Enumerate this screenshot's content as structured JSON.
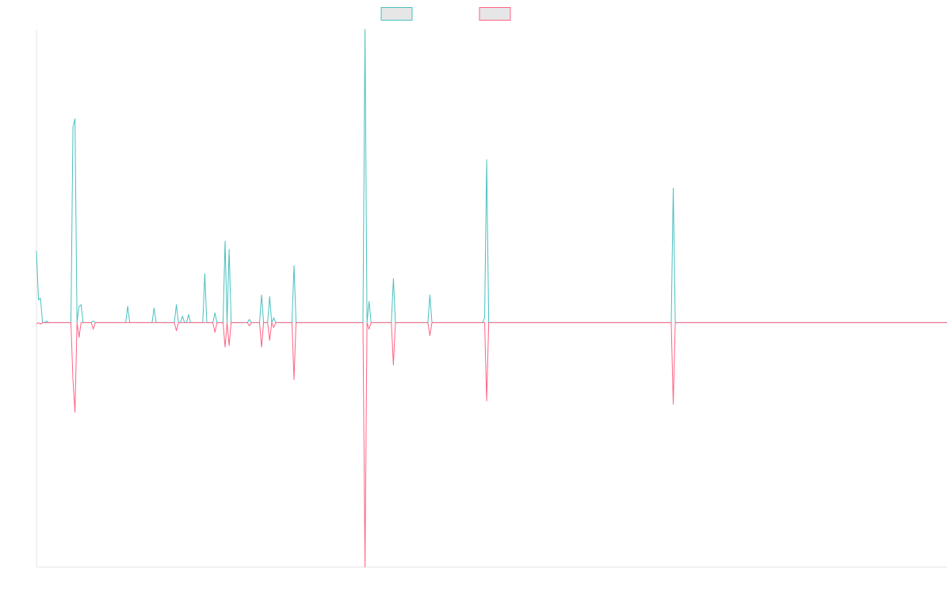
{
  "chart_data": {
    "type": "line",
    "title": "",
    "xlabel": "",
    "ylabel": "",
    "grid": false,
    "legend": "top-center",
    "x": [
      0,
      1,
      2,
      3,
      4,
      5,
      6,
      7,
      8,
      9,
      10,
      11,
      12,
      13,
      14,
      15,
      16,
      17,
      18,
      19,
      20,
      21,
      22,
      23,
      24,
      25,
      26,
      27,
      28,
      29,
      30,
      31,
      32,
      33,
      34,
      35,
      36,
      37,
      38,
      39,
      40,
      41,
      42,
      43,
      44,
      45,
      46,
      47,
      48,
      49,
      50,
      51,
      52,
      53,
      54,
      55,
      56,
      57,
      58,
      59,
      60,
      61,
      62,
      63,
      64,
      65,
      66,
      67,
      68,
      69,
      70,
      71,
      72,
      73,
      74,
      75,
      76,
      77,
      78,
      79,
      80,
      81,
      82,
      83,
      84,
      85,
      86,
      87,
      88,
      89,
      90,
      91,
      92,
      93,
      94,
      95,
      96,
      97,
      98,
      99,
      100,
      101,
      102,
      103,
      104,
      105,
      106,
      107,
      108,
      109,
      110,
      111,
      112,
      113,
      114,
      115,
      116,
      117,
      118,
      119,
      120,
      121,
      122,
      123,
      124,
      125,
      126,
      127,
      128,
      129,
      130,
      131,
      132,
      133,
      134,
      135,
      136,
      137,
      138,
      139,
      140,
      141,
      142,
      143,
      144,
      145,
      146,
      147,
      148,
      149,
      150,
      151,
      152,
      153,
      154,
      155,
      156,
      157,
      158,
      159,
      160,
      161,
      162,
      163,
      164,
      165,
      166,
      167,
      168,
      169,
      170,
      171,
      172,
      173,
      174,
      175,
      176,
      177,
      178,
      179,
      180,
      181,
      182,
      183,
      184,
      185,
      186,
      187,
      188,
      189,
      190,
      191,
      192,
      193,
      194,
      195,
      196,
      197,
      198,
      199,
      200,
      201,
      202,
      203,
      204,
      205,
      206,
      207,
      208,
      209,
      210,
      211,
      212,
      213,
      214,
      215,
      216,
      217,
      218,
      219,
      220,
      221,
      222,
      223,
      224,
      225,
      226,
      227,
      228,
      229,
      230,
      231,
      232,
      233,
      234,
      235,
      236,
      237,
      238,
      239,
      240,
      241,
      242,
      243,
      244,
      245,
      246,
      247,
      248,
      249,
      250,
      251,
      252,
      253,
      254,
      255,
      256,
      257,
      258,
      259,
      260,
      261,
      262,
      263,
      264,
      265,
      266,
      267,
      268,
      269,
      270,
      271,
      272,
      273,
      274,
      275,
      276,
      277,
      278,
      279,
      280,
      281,
      282,
      283,
      284,
      285,
      286,
      287,
      288,
      289,
      290,
      291,
      292,
      293,
      294,
      295,
      296,
      297,
      298,
      299,
      300,
      301,
      302,
      303,
      304,
      305,
      306,
      307,
      308,
      309,
      310,
      311,
      312,
      313,
      314,
      315,
      316,
      317,
      318,
      319,
      320,
      321,
      322,
      323,
      324,
      325,
      326,
      327,
      328,
      329,
      330,
      331,
      332,
      333,
      334,
      335,
      336,
      337,
      338,
      339,
      340,
      341,
      342,
      343,
      344,
      345,
      346,
      347,
      348,
      349,
      350,
      351,
      352,
      353,
      354,
      355,
      356,
      357,
      358,
      359,
      360,
      361,
      362,
      363,
      364,
      365,
      366,
      367,
      368,
      369,
      370,
      371,
      372,
      373,
      374,
      375,
      376,
      377,
      378,
      379,
      380,
      381,
      382,
      383,
      384,
      385,
      386,
      387,
      388,
      389,
      390,
      391,
      392,
      393,
      394,
      395,
      396,
      397,
      398,
      399,
      400,
      401,
      402,
      403,
      404,
      405,
      406,
      407,
      408,
      409,
      410,
      411,
      412,
      413,
      414,
      415,
      416,
      417,
      418,
      419,
      420,
      421,
      422,
      423,
      424,
      425,
      426,
      427,
      428,
      429,
      430,
      431,
      432,
      433,
      434,
      435,
      436,
      437,
      438,
      439,
      440,
      441,
      442,
      443,
      444,
      445,
      446,
      447,
      448,
      449
    ],
    "xlim": [
      0,
      449
    ],
    "ylim": [
      -0.3,
      0.36
    ],
    "series": [
      {
        "name": "",
        "color": "#4bc0c0",
        "spikes": [
          [
            0,
            0.088
          ],
          [
            1,
            0.028
          ],
          [
            2,
            0.03
          ],
          [
            5,
            0.002
          ],
          [
            18,
            0.24
          ],
          [
            19,
            0.25
          ],
          [
            21,
            0.02
          ],
          [
            22,
            0.022
          ],
          [
            28,
            0.002
          ],
          [
            45,
            0.02
          ],
          [
            58,
            0.018
          ],
          [
            69,
            0.022
          ],
          [
            72,
            0.008
          ],
          [
            75,
            0.01
          ],
          [
            83,
            0.06
          ],
          [
            88,
            0.012
          ],
          [
            93,
            0.1
          ],
          [
            95,
            0.09
          ],
          [
            105,
            0.004
          ],
          [
            111,
            0.034
          ],
          [
            115,
            0.032
          ],
          [
            117,
            0.006
          ],
          [
            127,
            0.07
          ],
          [
            162,
            0.36
          ],
          [
            164,
            0.026
          ],
          [
            176,
            0.054
          ],
          [
            194,
            0.034
          ],
          [
            221,
            0.006
          ],
          [
            222,
            0.2
          ],
          [
            314,
            0.165
          ]
        ]
      },
      {
        "name": "",
        "color": "#ff6384",
        "spikes": [
          [
            0,
            -0.002
          ],
          [
            2,
            -0.002
          ],
          [
            18,
            -0.07
          ],
          [
            19,
            -0.11
          ],
          [
            21,
            -0.018
          ],
          [
            28,
            -0.008
          ],
          [
            69,
            -0.01
          ],
          [
            88,
            -0.012
          ],
          [
            93,
            -0.03
          ],
          [
            95,
            -0.028
          ],
          [
            105,
            -0.004
          ],
          [
            111,
            -0.03
          ],
          [
            115,
            -0.022
          ],
          [
            117,
            -0.006
          ],
          [
            127,
            -0.07
          ],
          [
            162,
            -0.3
          ],
          [
            164,
            -0.008
          ],
          [
            176,
            -0.052
          ],
          [
            194,
            -0.016
          ],
          [
            222,
            -0.096
          ],
          [
            314,
            -0.1
          ]
        ]
      }
    ]
  }
}
